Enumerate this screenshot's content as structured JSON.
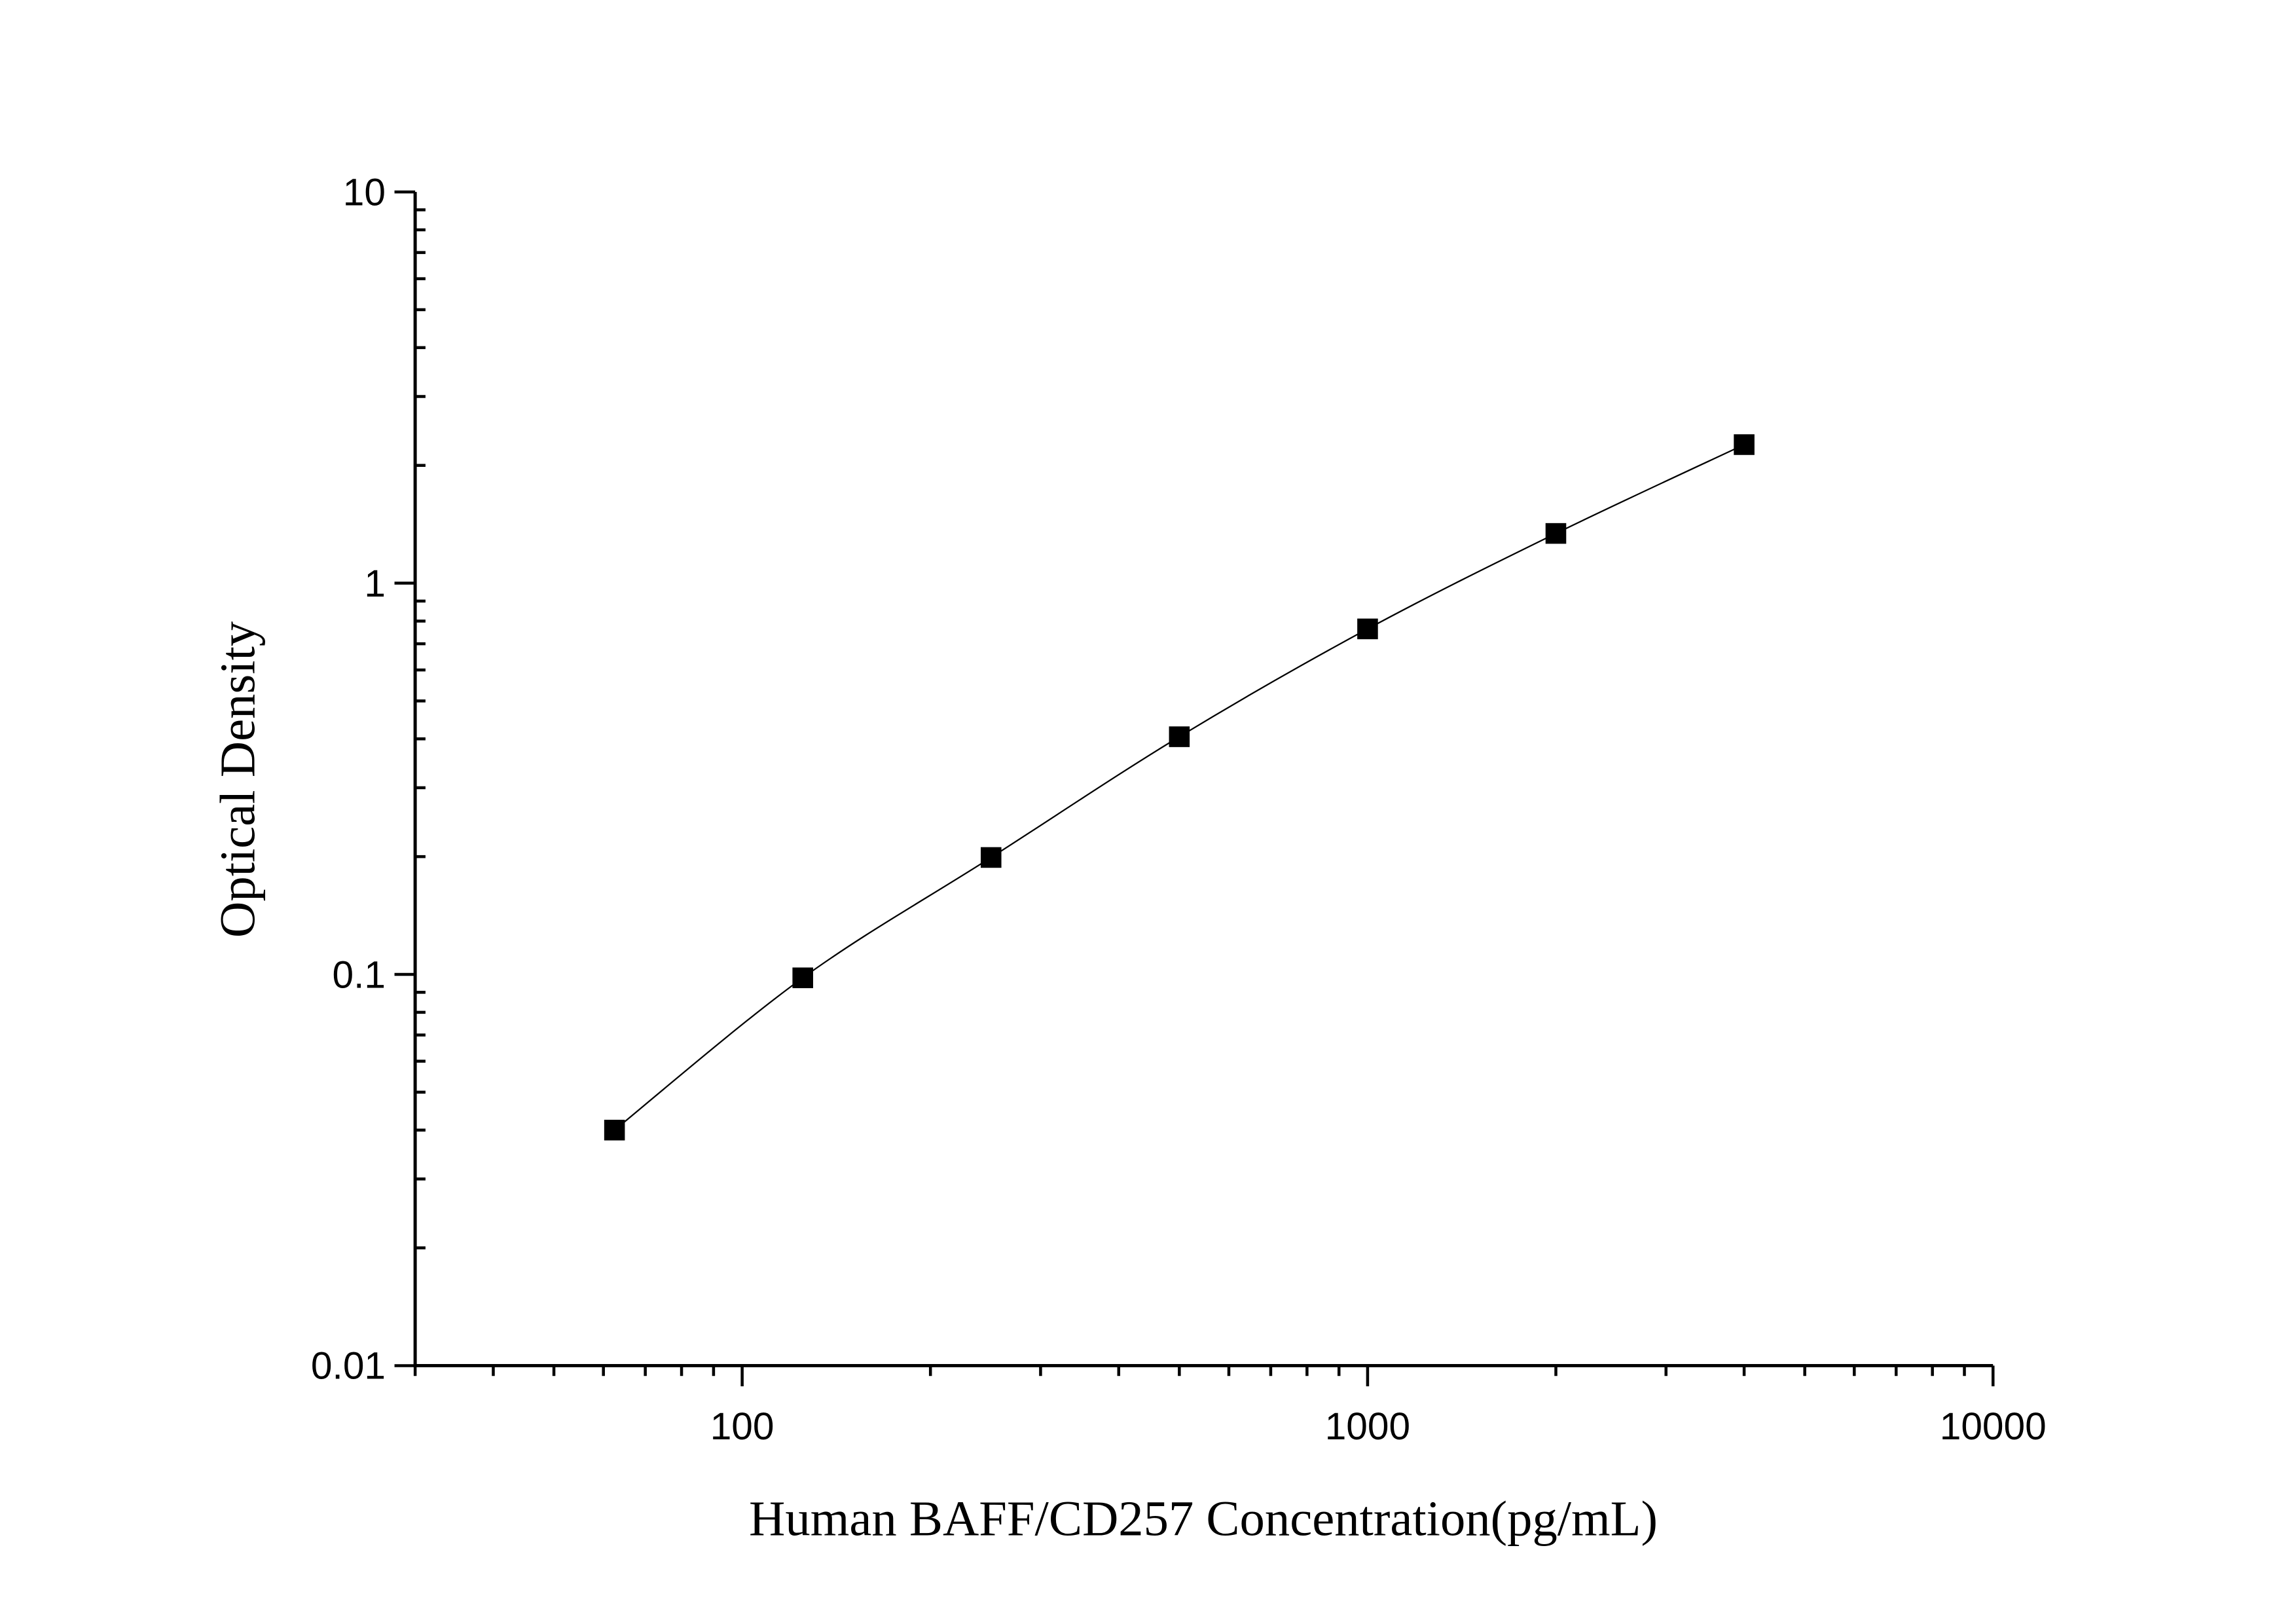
{
  "chart_data": {
    "type": "scatter",
    "title": "",
    "xlabel": "Human BAFF/CD257 Concentration(pg/mL)",
    "ylabel": "Optical Density",
    "xscale": "log",
    "yscale": "log",
    "xlim": [
      30,
      10000
    ],
    "ylim": [
      0.01,
      10
    ],
    "grid": false,
    "x_ticks": [
      "100",
      "1000",
      "10000"
    ],
    "y_ticks": [
      "0.01",
      "0.1",
      "1",
      "10"
    ],
    "series": [
      {
        "x": [
          62.5,
          125,
          250,
          500,
          1000,
          2000,
          4000
        ],
        "y": [
          0.04,
          0.098,
          0.199,
          0.405,
          0.764,
          1.34,
          2.26
        ],
        "marker": "square",
        "color": "#000000",
        "fit_line": true
      }
    ]
  }
}
